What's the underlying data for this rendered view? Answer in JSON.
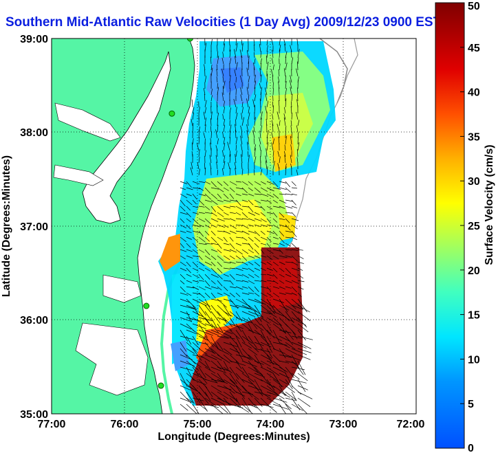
{
  "title": "Southern Mid-Atlantic Raw Velocities (1 Day Avg) 2009/12/23 0900 EST",
  "map": {
    "xlabel": "Longitude (Degrees:Minutes)",
    "ylabel": "Latitude (Degrees:Minutes)",
    "x_ticks": [
      "77:00",
      "76:00",
      "75:00",
      "74:00",
      "73:00",
      "72:00"
    ],
    "y_ticks": [
      "39:00",
      "38:00",
      "37:00",
      "36:00",
      "35:00"
    ],
    "x_range": [
      -77,
      -72
    ],
    "y_range": [
      35,
      39
    ],
    "grid": "dotted",
    "land_color": "#55f5a5",
    "coast_color": "#000000"
  },
  "colorbar": {
    "label": "Surface Velocity (cm/s)",
    "ticks": [
      "50",
      "45",
      "40",
      "35",
      "30",
      "25",
      "20",
      "15",
      "10",
      "5",
      "0"
    ],
    "range": [
      0,
      50
    ],
    "colormap": "jet"
  },
  "stations": [
    {
      "lon": -75.1,
      "lat": 39.0
    },
    {
      "lon": -75.35,
      "lat": 38.2
    },
    {
      "lon": -75.7,
      "lat": 36.15
    },
    {
      "lon": -75.5,
      "lat": 35.3
    }
  ]
}
